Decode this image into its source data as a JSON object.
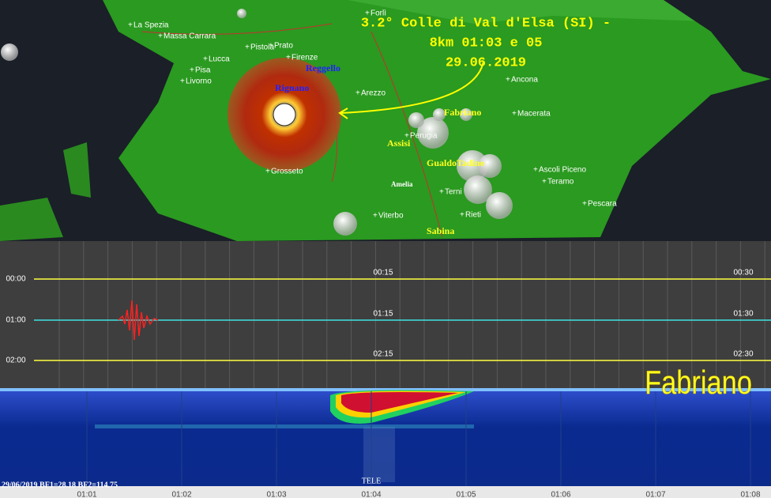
{
  "map": {
    "title_lines": [
      "3.2° Colle di Val d'Elsa (SI) -",
      "8km 01:03 e 05",
      "29.06.2019"
    ],
    "places": [
      "Forlì",
      "La Spezia",
      "Massa Carrara",
      "Pistoia",
      "Prato",
      "Firenze",
      "Lucca",
      "Pisa",
      "Livorno",
      "Reggello",
      "Rignano",
      "Arezzo",
      "Ancona",
      "Fabriano",
      "Macerata",
      "Assisi",
      "Perugia",
      "GualdoTadino",
      "Ascoli Piceno",
      "Teramo",
      "Amelia",
      "Terni",
      "Pescara",
      "Grosseto",
      "Viterbo",
      "Rieti",
      "Sabina"
    ]
  },
  "seismogram": {
    "row_labels": [
      "00:00",
      "01:00",
      "02:00"
    ],
    "mid_labels": [
      "00:15",
      "01:15",
      "02:15"
    ],
    "end_labels": [
      "00:30",
      "01:30",
      "02:30"
    ]
  },
  "spectrogram": {
    "station": "Fabriano",
    "info": "29/06/2019 BF1=28.18 BF2=114.75",
    "marker": "TELE",
    "time_labels": [
      "01:01",
      "01:02",
      "01:03",
      "01:04",
      "01:05",
      "01:06",
      "01:07",
      "01:08"
    ]
  }
}
